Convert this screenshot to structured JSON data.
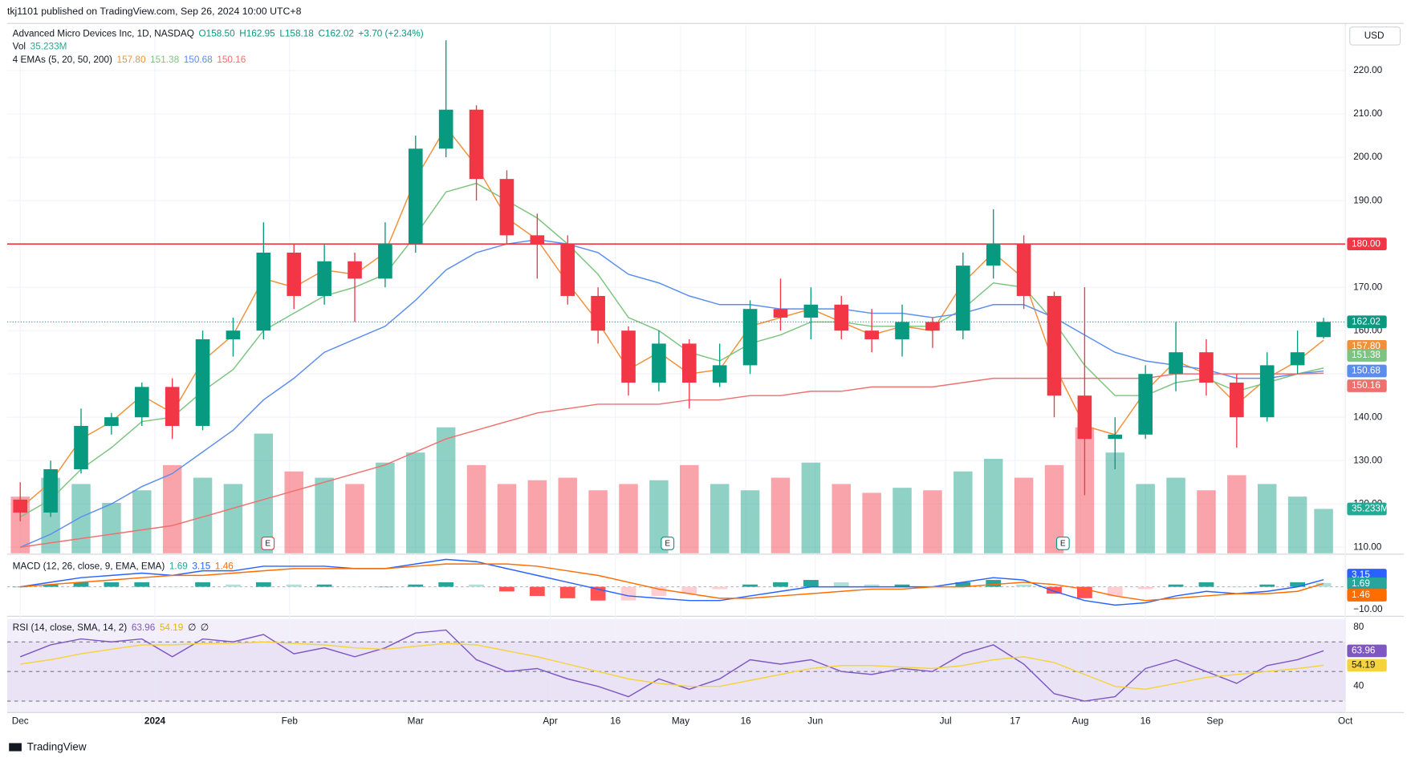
{
  "chart_data": {
    "type": "candlestick",
    "publisher": "tkj1101 published on TradingView.com, Sep 26, 2024 10:00 UTC+8",
    "title": "Advanced Micro Devices Inc, 1D, NASDAQ",
    "ohlc_legend": [
      "O158.50",
      "H162.95",
      "L158.18",
      "C162.02",
      "+3.70 (+2.34%)"
    ],
    "currency": "USD",
    "footer": "TradingView",
    "x": [
      0,
      7,
      14,
      21,
      28,
      35,
      42,
      49,
      56,
      63,
      70,
      77,
      84,
      91,
      98,
      105,
      112,
      119,
      126,
      133,
      140,
      147,
      154,
      161,
      168,
      175,
      182,
      189,
      196,
      203,
      210,
      217,
      224,
      231,
      238,
      245,
      252,
      259,
      266,
      273,
      280,
      287,
      294,
      300
    ],
    "open": [
      121,
      118,
      128,
      138,
      140,
      147,
      138,
      158,
      160,
      178,
      168,
      176,
      172,
      180,
      202,
      211,
      195,
      182,
      180,
      168,
      160,
      148,
      157,
      148,
      152,
      165,
      163,
      166,
      160,
      158,
      162,
      160,
      175,
      180,
      168,
      145,
      135,
      136,
      150,
      155,
      148,
      140,
      152,
      158.5
    ],
    "high": [
      125,
      130,
      142,
      141,
      148,
      149,
      160,
      163,
      185,
      180,
      180,
      178,
      185,
      205,
      227,
      212,
      197,
      187,
      182,
      170,
      161,
      160,
      158,
      157,
      167,
      172,
      170,
      168,
      165,
      166,
      163,
      178,
      188,
      182,
      169,
      170,
      140,
      152,
      162,
      158,
      150,
      155,
      160,
      162.95
    ],
    "low": [
      116,
      117,
      127,
      136,
      138,
      135,
      137,
      154,
      158,
      165,
      166,
      162,
      170,
      178,
      200,
      190,
      180,
      172,
      166,
      157,
      145,
      146,
      142,
      147,
      150,
      160,
      158,
      158,
      155,
      154,
      156,
      158,
      172,
      165,
      140,
      122,
      128,
      135,
      146,
      145,
      133,
      139,
      150,
      158.18
    ],
    "close": [
      118,
      128,
      138,
      140,
      147,
      138,
      158,
      160,
      178,
      168,
      176,
      172,
      180,
      202,
      211,
      195,
      182,
      180,
      168,
      160,
      148,
      157,
      148,
      152,
      165,
      163,
      166,
      160,
      158,
      162,
      160,
      175,
      180,
      168,
      145,
      135,
      136,
      150,
      155,
      148,
      140,
      152,
      155,
      162.02
    ],
    "up_color": "#089981",
    "down_color": "#f23645",
    "xlim": [
      -3,
      305
    ],
    "xticks": [
      {
        "value": 0,
        "label": "Dec"
      },
      {
        "value": 31,
        "label": "2024"
      },
      {
        "value": 62,
        "label": "Feb"
      },
      {
        "value": 91,
        "label": "Mar"
      },
      {
        "value": 122,
        "label": "Apr"
      },
      {
        "value": 137,
        "label": "16"
      },
      {
        "value": 152,
        "label": "May"
      },
      {
        "value": 167,
        "label": "16"
      },
      {
        "value": 183,
        "label": "Jun"
      },
      {
        "value": 213,
        "label": "Jul"
      },
      {
        "value": 229,
        "label": "17"
      },
      {
        "value": 244,
        "label": "Aug"
      },
      {
        "value": 259,
        "label": "16"
      },
      {
        "value": 275,
        "label": "Sep"
      },
      {
        "value": 305,
        "label": "Oct"
      }
    ],
    "ylim": [
      108.6,
      230.5
    ],
    "yticks": [
      {
        "value": 110,
        "label": "110.00"
      },
      {
        "value": 120,
        "label": "120.00"
      },
      {
        "value": 130,
        "label": "130.00"
      },
      {
        "value": 140,
        "label": "140.00"
      },
      {
        "value": 150,
        "label": "150.00"
      },
      {
        "value": 160,
        "label": "160.00"
      },
      {
        "value": 170,
        "label": "170.00"
      },
      {
        "value": 180,
        "label": "180.00"
      },
      {
        "value": 190,
        "label": "190.00"
      },
      {
        "value": 200,
        "label": "200.00"
      },
      {
        "value": 210,
        "label": "210.00"
      },
      {
        "value": 220,
        "label": "220.00"
      }
    ],
    "horizontal_line": {
      "value": 180,
      "label": "180.00",
      "color": "#f23645"
    },
    "last_price": {
      "value": 162.02,
      "label": "162.02",
      "color": "#089981"
    },
    "ema_legend": "4 EMAs (5, 20, 50, 200)",
    "series": [
      {
        "name": "EMA 5",
        "color": "#f0913a",
        "last_label": "157.80",
        "values": [
          119,
          125,
          135,
          139,
          145,
          141,
          153,
          159,
          172,
          170,
          174,
          173,
          178,
          195,
          207,
          198,
          186,
          181,
          171,
          162,
          151,
          155,
          150,
          151,
          161,
          163,
          165,
          162,
          159,
          161,
          160,
          171,
          178,
          172,
          152,
          138,
          136,
          146,
          153,
          150,
          143,
          149,
          153,
          157.8
        ]
      },
      {
        "name": "EMA 20",
        "color": "#7cc47f",
        "last_label": "151.38",
        "values": [
          117,
          121,
          128,
          133,
          139,
          140,
          146,
          151,
          160,
          164,
          168,
          170,
          173,
          182,
          192,
          194,
          190,
          186,
          180,
          173,
          163,
          160,
          155,
          153,
          157,
          159,
          162,
          162,
          161,
          161,
          161,
          165,
          171,
          170,
          162,
          152,
          145,
          145,
          148,
          149,
          146,
          148,
          150,
          151.38
        ]
      },
      {
        "name": "EMA 50",
        "color": "#5b8def",
        "last_label": "150.68",
        "values": [
          110,
          113,
          117,
          120,
          124,
          127,
          132,
          137,
          144,
          149,
          155,
          158,
          161,
          167,
          174,
          178,
          180,
          181,
          180,
          178,
          173,
          171,
          168,
          166,
          166,
          165,
          165,
          165,
          164,
          164,
          163,
          164,
          166,
          166,
          163,
          159,
          155,
          153,
          152,
          151,
          149,
          149,
          150,
          150.68
        ]
      },
      {
        "name": "EMA 200",
        "color": "#f06f6f",
        "last_label": "150.16",
        "values": [
          110,
          111,
          112,
          113,
          114,
          115,
          117,
          119,
          121,
          123,
          125,
          127,
          129,
          132,
          135,
          137,
          139,
          141,
          142,
          143,
          143,
          143,
          144,
          144,
          145,
          145,
          146,
          146,
          147,
          147,
          147,
          148,
          149,
          149,
          149,
          149,
          149,
          149,
          150,
          150,
          150,
          150,
          150,
          150.16
        ]
      }
    ],
    "volume": {
      "name": "Vol",
      "last_label": "35.233M",
      "ylim": [
        0,
        125
      ],
      "values": [
        45,
        60,
        55,
        40,
        50,
        70,
        60,
        55,
        95,
        65,
        60,
        55,
        72,
        80,
        100,
        70,
        55,
        58,
        60,
        50,
        55,
        58,
        70,
        55,
        50,
        60,
        72,
        55,
        48,
        52,
        50,
        65,
        75,
        60,
        70,
        100,
        80,
        55,
        60,
        50,
        62,
        55,
        45,
        35.233
      ]
    },
    "earnings": {
      "label": "E",
      "x": [
        57,
        149,
        240
      ]
    },
    "macd": {
      "name": "MACD (12, 26, close, 9, EMA, EMA)",
      "legend_values": [
        "1.69",
        "3.15",
        "1.46"
      ],
      "ylim": [
        -12.5,
        13.5
      ],
      "yticks": [
        {
          "value": -10,
          "label": "−10.00"
        }
      ],
      "hist": [
        0,
        1,
        2,
        2,
        2,
        0,
        2,
        1,
        2,
        1,
        1,
        0,
        0,
        1,
        2,
        1,
        -2,
        -4,
        -5,
        -6,
        -6,
        -4,
        -3,
        -1,
        1,
        2,
        3,
        2,
        1,
        1,
        0,
        2,
        3,
        1,
        -3,
        -5,
        -4,
        -1,
        1,
        2,
        0,
        1,
        2,
        1.69
      ],
      "macd": [
        0,
        2,
        4,
        5,
        6,
        5,
        7,
        7,
        9,
        9,
        9,
        8,
        8,
        10,
        12,
        11,
        8,
        5,
        2,
        -1,
        -4,
        -5,
        -6,
        -6,
        -4,
        -2,
        0,
        0,
        0,
        0,
        0,
        2,
        4,
        3,
        -2,
        -6,
        -8,
        -7,
        -4,
        -2,
        -3,
        -2,
        0,
        3.15
      ],
      "signal": [
        0,
        1,
        2,
        3,
        4,
        5,
        5,
        6,
        7,
        8,
        8,
        8,
        8,
        9,
        10,
        10,
        10,
        9,
        7,
        5,
        2,
        -1,
        -3,
        -5,
        -5,
        -4,
        -3,
        -2,
        -1,
        -1,
        0,
        0,
        1,
        2,
        1,
        -1,
        -4,
        -6,
        -5,
        -4,
        -3,
        -3,
        -2,
        1.46
      ],
      "macd_color": "#2962ff",
      "signal_color": "#ff6d00"
    },
    "rsi": {
      "name": "RSI (14, close, SMA, 14, 2)",
      "legend_values": [
        "63.96",
        "54.19",
        "∅",
        "∅"
      ],
      "ylim": [
        22.3,
        85.5
      ],
      "yticks": [
        80,
        40
      ],
      "bands": [
        70,
        50,
        30
      ],
      "values": [
        60,
        68,
        72,
        70,
        72,
        60,
        72,
        70,
        75,
        62,
        66,
        60,
        66,
        76,
        78,
        58,
        50,
        52,
        45,
        40,
        33,
        45,
        38,
        45,
        58,
        55,
        58,
        50,
        48,
        52,
        50,
        62,
        68,
        55,
        35,
        30,
        33,
        52,
        58,
        50,
        42,
        54,
        58,
        63.96
      ],
      "ma": [
        55,
        58,
        62,
        65,
        68,
        68,
        69,
        69,
        70,
        69,
        68,
        66,
        65,
        67,
        69,
        68,
        64,
        60,
        55,
        50,
        45,
        42,
        40,
        40,
        44,
        48,
        52,
        54,
        54,
        53,
        52,
        54,
        58,
        60,
        56,
        48,
        40,
        38,
        42,
        46,
        48,
        50,
        52,
        54.19
      ],
      "color": "#7e57c2",
      "ma_color": "#f5d33d"
    }
  }
}
